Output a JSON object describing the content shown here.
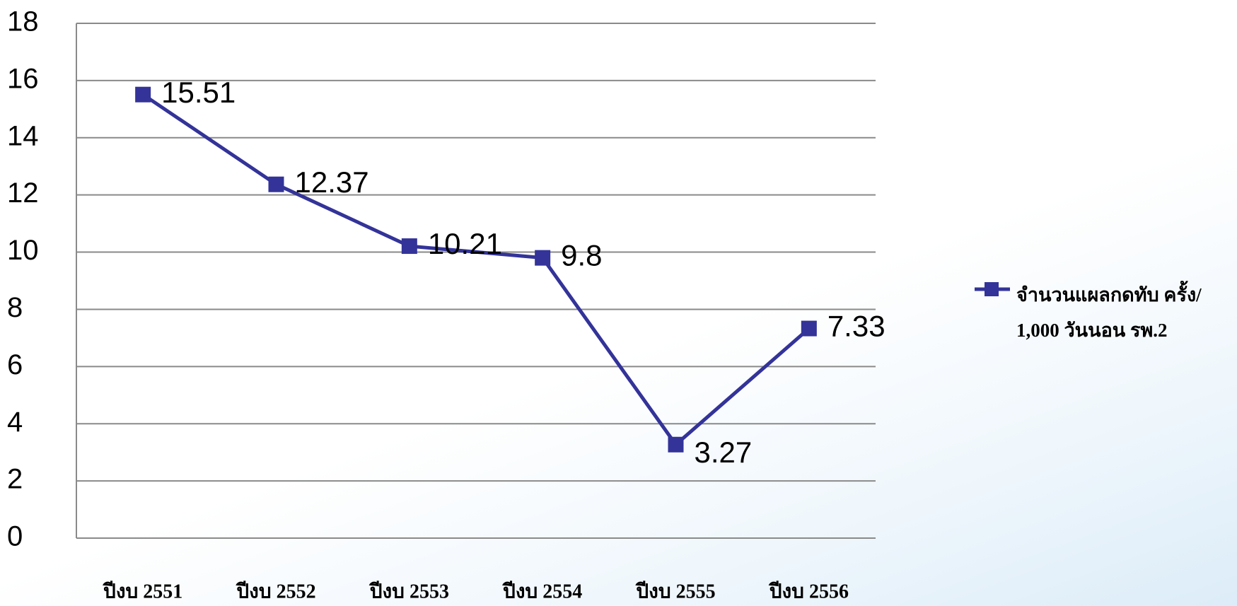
{
  "chart_data": {
    "type": "line",
    "categories": [
      "ปีงบ 2551",
      "ปีงบ 2552",
      "ปีงบ 2553",
      "ปีงบ 2554",
      "ปีงบ 2555",
      "ปีงบ 2556"
    ],
    "series": [
      {
        "name": "จำนวนแผลกดทับ ครั้ง/ 1,000 วันนอน รพ.2",
        "color": "#333399",
        "values": [
          15.51,
          12.37,
          10.21,
          9.8,
          3.27,
          7.33
        ]
      }
    ],
    "ylim": [
      0,
      18
    ],
    "yticks": [
      0,
      2,
      4,
      6,
      8,
      10,
      12,
      14,
      16,
      18
    ],
    "grid": true,
    "legend": "right"
  }
}
